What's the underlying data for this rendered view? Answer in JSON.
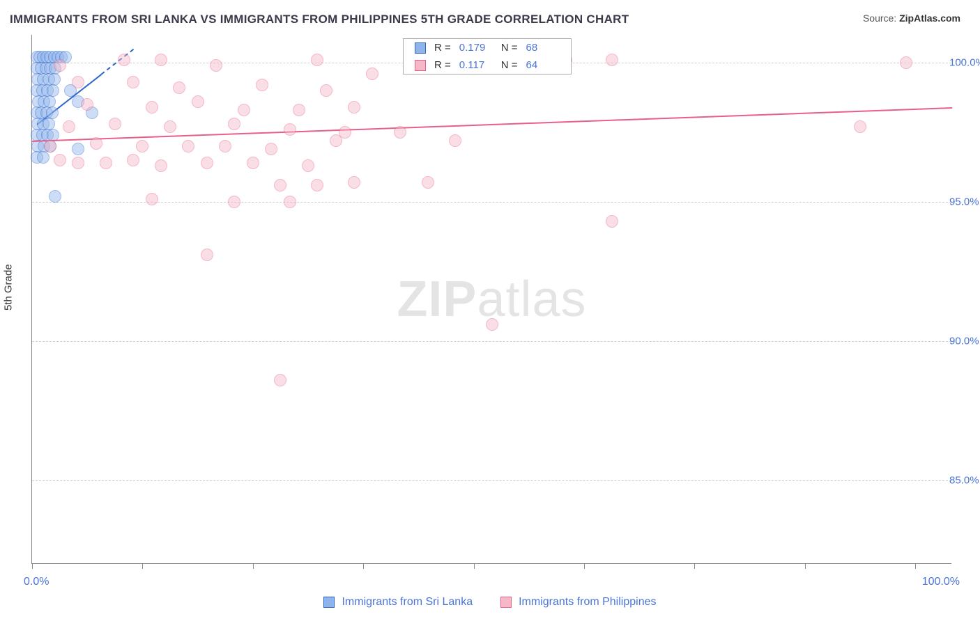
{
  "title": "IMMIGRANTS FROM SRI LANKA VS IMMIGRANTS FROM PHILIPPINES 5TH GRADE CORRELATION CHART",
  "source_prefix": "Source: ",
  "source_name": "ZipAtlas.com",
  "ylabel": "5th Grade",
  "watermark_bold": "ZIP",
  "watermark_rest": "atlas",
  "chart": {
    "type": "scatter",
    "xlim": [
      0,
      100
    ],
    "ylim": [
      82,
      101
    ],
    "x_ticks": [
      0,
      12,
      24,
      36,
      48,
      60,
      72,
      84,
      96
    ],
    "y_gridlines": [
      85,
      90,
      95,
      100
    ],
    "y_tick_labels": [
      "85.0%",
      "90.0%",
      "95.0%",
      "100.0%"
    ],
    "x_min_label": "0.0%",
    "x_max_label": "100.0%",
    "background_color": "#ffffff",
    "grid_color": "#cfcfcf",
    "axis_color": "#888888",
    "tick_label_color": "#4a74d8",
    "marker_radius": 9,
    "marker_opacity": 0.45,
    "series": [
      {
        "key": "sri_lanka",
        "label": "Immigrants from Sri Lanka",
        "color_fill": "#8fb4ea",
        "color_stroke": "#2b66d0",
        "R": "0.179",
        "N": "68",
        "trend": {
          "x1": 0.5,
          "y1": 97.8,
          "x2": 11,
          "y2": 100.5,
          "solid_until_x": 7.5
        },
        "points": [
          [
            0.5,
            100.2
          ],
          [
            0.8,
            100.2
          ],
          [
            1.2,
            100.2
          ],
          [
            1.6,
            100.2
          ],
          [
            2.0,
            100.2
          ],
          [
            2.4,
            100.2
          ],
          [
            2.8,
            100.2
          ],
          [
            3.2,
            100.2
          ],
          [
            3.6,
            100.2
          ],
          [
            0.5,
            99.8
          ],
          [
            1.0,
            99.8
          ],
          [
            1.5,
            99.8
          ],
          [
            2.0,
            99.8
          ],
          [
            2.5,
            99.8
          ],
          [
            0.6,
            99.4
          ],
          [
            1.2,
            99.4
          ],
          [
            1.8,
            99.4
          ],
          [
            2.4,
            99.4
          ],
          [
            0.5,
            99.0
          ],
          [
            1.1,
            99.0
          ],
          [
            1.7,
            99.0
          ],
          [
            2.3,
            99.0
          ],
          [
            4.2,
            99.0
          ],
          [
            0.7,
            98.6
          ],
          [
            1.3,
            98.6
          ],
          [
            1.9,
            98.6
          ],
          [
            5.0,
            98.6
          ],
          [
            0.5,
            98.2
          ],
          [
            1.0,
            98.2
          ],
          [
            1.6,
            98.2
          ],
          [
            2.2,
            98.2
          ],
          [
            6.5,
            98.2
          ],
          [
            0.6,
            97.8
          ],
          [
            1.2,
            97.8
          ],
          [
            1.8,
            97.8
          ],
          [
            0.5,
            97.4
          ],
          [
            1.1,
            97.4
          ],
          [
            1.7,
            97.4
          ],
          [
            2.3,
            97.4
          ],
          [
            0.6,
            97.0
          ],
          [
            1.3,
            97.0
          ],
          [
            2.0,
            97.0
          ],
          [
            0.5,
            96.6
          ],
          [
            1.2,
            96.6
          ],
          [
            5.0,
            96.9
          ],
          [
            2.5,
            95.2
          ]
        ]
      },
      {
        "key": "philippines",
        "label": "Immigrants from Philippines",
        "color_fill": "#f6b7c6",
        "color_stroke": "#e85f88",
        "R": "0.117",
        "N": "64",
        "trend": {
          "x1": 0,
          "y1": 97.2,
          "x2": 100,
          "y2": 98.4,
          "solid_until_x": 100
        },
        "points": [
          [
            3,
            99.9
          ],
          [
            10,
            100.1
          ],
          [
            14,
            100.1
          ],
          [
            20,
            99.9
          ],
          [
            31,
            100.1
          ],
          [
            37,
            99.6
          ],
          [
            58,
            100.1
          ],
          [
            63,
            100.1
          ],
          [
            95,
            100.0
          ],
          [
            5,
            99.3
          ],
          [
            11,
            99.3
          ],
          [
            16,
            99.1
          ],
          [
            25,
            99.2
          ],
          [
            32,
            99.0
          ],
          [
            6,
            98.5
          ],
          [
            13,
            98.4
          ],
          [
            18,
            98.6
          ],
          [
            23,
            98.3
          ],
          [
            29,
            98.3
          ],
          [
            35,
            98.4
          ],
          [
            4,
            97.7
          ],
          [
            9,
            97.8
          ],
          [
            15,
            97.7
          ],
          [
            22,
            97.8
          ],
          [
            28,
            97.6
          ],
          [
            34,
            97.5
          ],
          [
            40,
            97.5
          ],
          [
            90,
            97.7
          ],
          [
            2,
            97.0
          ],
          [
            7,
            97.1
          ],
          [
            12,
            97.0
          ],
          [
            17,
            97.0
          ],
          [
            21,
            97.0
          ],
          [
            26,
            96.9
          ],
          [
            33,
            97.2
          ],
          [
            46,
            97.2
          ],
          [
            3,
            96.5
          ],
          [
            5,
            96.4
          ],
          [
            8,
            96.4
          ],
          [
            11,
            96.5
          ],
          [
            14,
            96.3
          ],
          [
            19,
            96.4
          ],
          [
            24,
            96.4
          ],
          [
            30,
            96.3
          ],
          [
            27,
            95.6
          ],
          [
            31,
            95.6
          ],
          [
            35,
            95.7
          ],
          [
            43,
            95.7
          ],
          [
            13,
            95.1
          ],
          [
            22,
            95.0
          ],
          [
            28,
            95.0
          ],
          [
            19,
            93.1
          ],
          [
            63,
            94.3
          ],
          [
            50,
            90.6
          ],
          [
            27,
            88.6
          ]
        ]
      }
    ]
  },
  "legend_top": {
    "r_label": "R =",
    "n_label": "N ="
  }
}
